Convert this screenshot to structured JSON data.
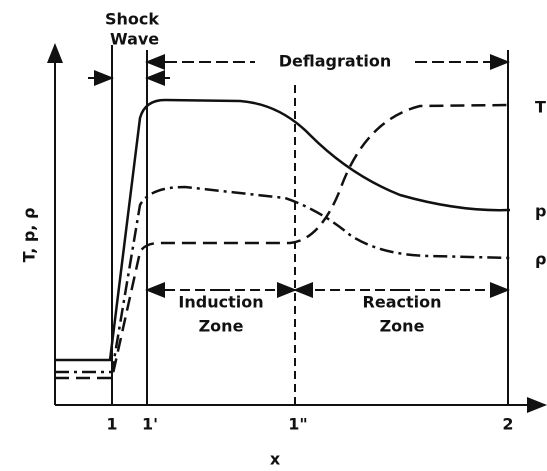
{
  "labels": {
    "shock_wave": [
      "Shock",
      "Wave"
    ],
    "deflagration": "Deflagration",
    "induction_zone": [
      "Induction",
      "Zone"
    ],
    "reaction_zone": [
      "Reaction",
      "Zone"
    ]
  },
  "y_axis_label": "T, p, ρ",
  "x_axis_label": "x",
  "curve_labels": [
    "T",
    "p",
    "ρ"
  ],
  "x_ticks": [
    "1",
    "1'",
    "1\"",
    "2"
  ]
}
